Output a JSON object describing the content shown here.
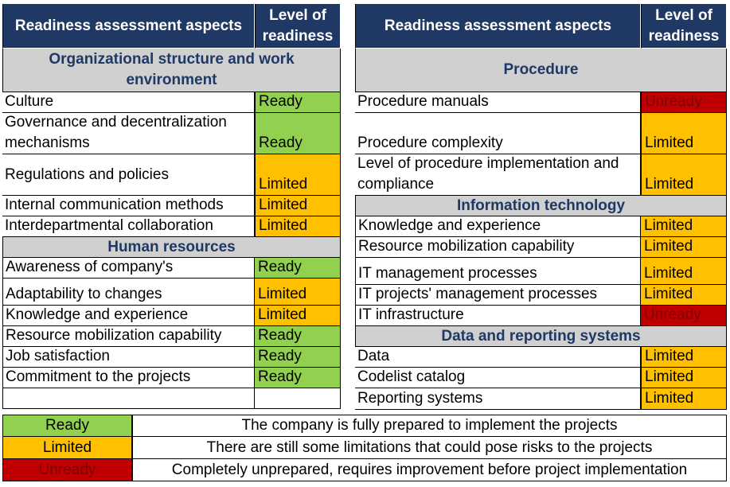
{
  "colors": {
    "header": "#1f3864",
    "section": "#d0d0d0",
    "ready": "#92d050",
    "limited": "#ffc000",
    "unready": "#c00000"
  },
  "left": {
    "header": {
      "aspects": "Readiness assessment aspects",
      "level": "Level of readiness"
    },
    "sections": [
      {
        "title": "Organizational structure and work environment",
        "rows": [
          {
            "aspect": "Culture",
            "level": "Ready"
          },
          {
            "aspect": "Governance and decentralization mechanisms",
            "level": "Ready"
          },
          {
            "aspect": "Regulations and policies",
            "level": "Limited"
          },
          {
            "aspect": "Internal communication methods",
            "level": "Limited"
          },
          {
            "aspect": "Interdepartmental collaboration",
            "level": "Limited"
          }
        ]
      },
      {
        "title": "Human resources",
        "rows": [
          {
            "aspect": "Awareness of company's",
            "level": "Ready"
          },
          {
            "aspect": "Adaptability to changes",
            "level": "Limited"
          },
          {
            "aspect": "Knowledge and experience",
            "level": "Limited"
          },
          {
            "aspect": "Resource mobilization capability",
            "level": "Ready"
          },
          {
            "aspect": "Job satisfaction",
            "level": "Ready"
          },
          {
            "aspect": "Commitment to the projects",
            "level": "Ready"
          },
          {
            "aspect": "",
            "level": ""
          }
        ]
      }
    ]
  },
  "right": {
    "header": {
      "aspects": "Readiness assessment aspects",
      "level": "Level of readiness"
    },
    "sections": [
      {
        "title": "Procedure",
        "rows": [
          {
            "aspect": "Procedure manuals",
            "level": "Unready"
          },
          {
            "aspect": "Procedure complexity",
            "level": "Limited"
          },
          {
            "aspect": "Level of procedure implementation and compliance",
            "level": "Limited"
          }
        ]
      },
      {
        "title": "Information technology",
        "rows": [
          {
            "aspect": "Knowledge and experience",
            "level": "Limited"
          },
          {
            "aspect": "Resource mobilization capability",
            "level": "Limited"
          },
          {
            "aspect": "IT management processes",
            "level": "Limited"
          },
          {
            "aspect": "IT projects' management processes",
            "level": "Limited"
          },
          {
            "aspect": "IT infrastructure",
            "level": "Unready"
          }
        ]
      },
      {
        "title": "Data and reporting systems",
        "rows": [
          {
            "aspect": "Data",
            "level": "Limited"
          },
          {
            "aspect": "Codelist catalog",
            "level": "Limited"
          },
          {
            "aspect": "Reporting systems",
            "level": "Limited"
          }
        ]
      }
    ]
  },
  "legend": [
    {
      "level": "Ready",
      "description": "The company is fully prepared to implement the projects"
    },
    {
      "level": "Limited",
      "description": "There are still some limitations that could pose risks to the projects"
    },
    {
      "level": "Unready",
      "description": "Completely unprepared, requires improvement before project implementation"
    }
  ]
}
